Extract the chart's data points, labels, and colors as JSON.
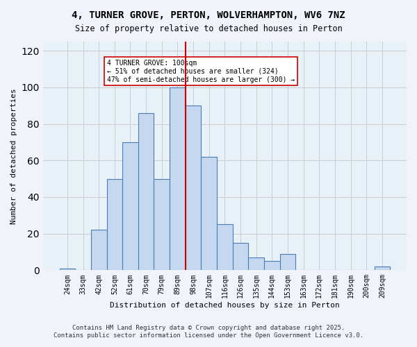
{
  "title_line1": "4, TURNER GROVE, PERTON, WOLVERHAMPTON, WV6 7NZ",
  "title_line2": "Size of property relative to detached houses in Perton",
  "xlabel": "Distribution of detached houses by size in Perton",
  "ylabel": "Number of detached properties",
  "bar_labels": [
    "24sqm",
    "33sqm",
    "42sqm",
    "52sqm",
    "61sqm",
    "70sqm",
    "79sqm",
    "89sqm",
    "98sqm",
    "107sqm",
    "116sqm",
    "126sqm",
    "135sqm",
    "144sqm",
    "153sqm",
    "163sqm",
    "172sqm",
    "181sqm",
    "190sqm",
    "200sqm",
    "209sqm"
  ],
  "bar_values": [
    1,
    0,
    22,
    50,
    70,
    86,
    50,
    100,
    90,
    62,
    25,
    15,
    7,
    5,
    9,
    0,
    0,
    0,
    0,
    0,
    2
  ],
  "bar_color": "#c5d8f0",
  "bar_edge_color": "#4a7cb5",
  "vline_x": 8,
  "vline_color": "#cc0000",
  "annotation_text": "4 TURNER GROVE: 100sqm\n← 51% of detached houses are smaller (324)\n47% of semi-detached houses are larger (300) →",
  "annotation_box_color": "#ffffff",
  "annotation_box_edge": "#cc0000",
  "ylim": [
    0,
    125
  ],
  "yticks": [
    0,
    20,
    40,
    60,
    80,
    100,
    120
  ],
  "grid_color": "#cccccc",
  "bg_color": "#e8f0f8",
  "footer_line1": "Contains HM Land Registry data © Crown copyright and database right 2025.",
  "footer_line2": "Contains public sector information licensed under the Open Government Licence v3.0."
}
